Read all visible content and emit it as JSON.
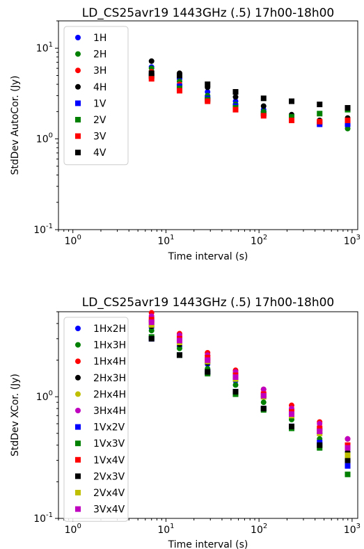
{
  "chart_data": [
    {
      "type": "scatter",
      "title": "LD_CS25avr19 1443GHz (.5) 17h00-18h00",
      "xlabel": "Time interval (s)",
      "ylabel": "StdDev  AutoCor. (Jy)",
      "xscale": "log",
      "yscale": "log",
      "xlim": [
        0.7,
        1150
      ],
      "ylim": [
        0.1,
        20
      ],
      "xticks": [
        {
          "value": 1,
          "label": "10^0"
        },
        {
          "value": 10,
          "label": "10^1"
        },
        {
          "value": 100,
          "label": "10^2"
        },
        {
          "value": 1000,
          "label": "10^3"
        }
      ],
      "yticks": [
        {
          "value": 0.1,
          "label": "10^-1"
        },
        {
          "value": 1,
          "label": "10^0"
        },
        {
          "value": 10,
          "label": "10^1"
        }
      ],
      "legend_position": "top-left",
      "x": [
        7,
        14,
        28,
        56,
        112,
        224,
        448,
        896
      ],
      "series": [
        {
          "name": "1H",
          "color": "#0000ff",
          "marker": "circle",
          "values": [
            6.2,
            4.6,
            3.3,
            2.6,
            2.1,
            1.75,
            1.45,
            1.4
          ]
        },
        {
          "name": "2H",
          "color": "#008000",
          "marker": "circle",
          "values": [
            6.0,
            4.3,
            3.0,
            2.4,
            2.0,
            1.7,
            1.5,
            1.3
          ]
        },
        {
          "name": "3H",
          "color": "#ff0000",
          "marker": "circle",
          "values": [
            5.5,
            4.0,
            2.8,
            2.3,
            1.9,
            1.65,
            1.55,
            1.6
          ]
        },
        {
          "name": "4H",
          "color": "#000000",
          "marker": "circle",
          "values": [
            7.2,
            5.3,
            3.7,
            2.9,
            2.3,
            1.85,
            1.6,
            1.7
          ]
        },
        {
          "name": "1V",
          "color": "#0000ff",
          "marker": "square",
          "values": [
            5.0,
            3.8,
            2.8,
            2.3,
            1.9,
            1.65,
            1.45,
            1.45
          ]
        },
        {
          "name": "2V",
          "color": "#008000",
          "marker": "square",
          "values": [
            4.9,
            3.6,
            2.7,
            2.2,
            1.9,
            1.75,
            1.9,
            2.1
          ]
        },
        {
          "name": "3V",
          "color": "#ff0000",
          "marker": "square",
          "values": [
            4.6,
            3.4,
            2.6,
            2.1,
            1.8,
            1.6,
            1.55,
            1.6
          ]
        },
        {
          "name": "4V",
          "color": "#000000",
          "marker": "square",
          "values": [
            5.3,
            5.0,
            4.0,
            3.3,
            2.8,
            2.6,
            2.4,
            2.2
          ]
        }
      ]
    },
    {
      "type": "scatter",
      "title": "LD_CS25avr19 1443GHz (.5) 17h00-18h00",
      "xlabel": "Time interval (s)",
      "ylabel": "StdDev XCor. (Jy)",
      "xscale": "log",
      "yscale": "log",
      "xlim": [
        0.7,
        1150
      ],
      "ylim": [
        0.1,
        5.0
      ],
      "xticks": [
        {
          "value": 1,
          "label": "10^0"
        },
        {
          "value": 10,
          "label": "10^1"
        },
        {
          "value": 100,
          "label": "10^2"
        },
        {
          "value": 1000,
          "label": "10^3"
        }
      ],
      "yticks": [
        {
          "value": 0.1,
          "label": "10^-1"
        },
        {
          "value": 1,
          "label": "10^0"
        }
      ],
      "legend_position": "top-left",
      "x": [
        7,
        14,
        28,
        56,
        112,
        224,
        448,
        896
      ],
      "series": [
        {
          "name": "1Hx2H",
          "color": "#0000ff",
          "marker": "circle",
          "values": [
            3.7,
            2.6,
            1.85,
            1.35,
            1.0,
            0.7,
            0.5,
            0.35
          ]
        },
        {
          "name": "1Hx3H",
          "color": "#008000",
          "marker": "circle",
          "values": [
            3.5,
            2.5,
            1.7,
            1.25,
            0.9,
            0.65,
            0.45,
            0.3
          ]
        },
        {
          "name": "1Hx4H",
          "color": "#ff0000",
          "marker": "circle",
          "values": [
            4.9,
            3.3,
            2.3,
            1.65,
            1.15,
            0.85,
            0.62,
            0.45
          ]
        },
        {
          "name": "2Hx3H",
          "color": "#000000",
          "marker": "circle",
          "values": [
            3.8,
            2.7,
            1.9,
            1.4,
            1.0,
            0.72,
            0.5,
            0.35
          ]
        },
        {
          "name": "2Hx4H",
          "color": "#bfbf00",
          "marker": "circle",
          "values": [
            4.2,
            2.9,
            2.0,
            1.5,
            1.05,
            0.75,
            0.55,
            0.4
          ]
        },
        {
          "name": "3Hx4H",
          "color": "#bf00bf",
          "marker": "circle",
          "values": [
            4.6,
            3.2,
            2.2,
            1.6,
            1.15,
            0.8,
            0.6,
            0.45
          ]
        },
        {
          "name": "1Vx2V",
          "color": "#0000ff",
          "marker": "square",
          "values": [
            3.0,
            2.2,
            1.6,
            1.1,
            0.8,
            0.57,
            0.42,
            0.27
          ]
        },
        {
          "name": "1Vx3V",
          "color": "#008000",
          "marker": "square",
          "values": [
            3.1,
            2.2,
            1.55,
            1.05,
            0.78,
            0.55,
            0.38,
            0.23
          ]
        },
        {
          "name": "1Vx4V",
          "color": "#ff0000",
          "marker": "square",
          "values": [
            4.3,
            3.0,
            2.1,
            1.5,
            1.05,
            0.75,
            0.55,
            0.4
          ]
        },
        {
          "name": "2Vx3V",
          "color": "#000000",
          "marker": "square",
          "values": [
            3.0,
            2.2,
            1.6,
            1.1,
            0.8,
            0.57,
            0.4,
            0.3
          ]
        },
        {
          "name": "2Vx4V",
          "color": "#bfbf00",
          "marker": "square",
          "values": [
            3.9,
            2.8,
            1.95,
            1.4,
            1.0,
            0.7,
            0.5,
            0.33
          ]
        },
        {
          "name": "3Vx4V",
          "color": "#bf00bf",
          "marker": "square",
          "values": [
            4.1,
            2.9,
            2.0,
            1.45,
            1.02,
            0.72,
            0.52,
            0.38
          ]
        }
      ]
    }
  ]
}
